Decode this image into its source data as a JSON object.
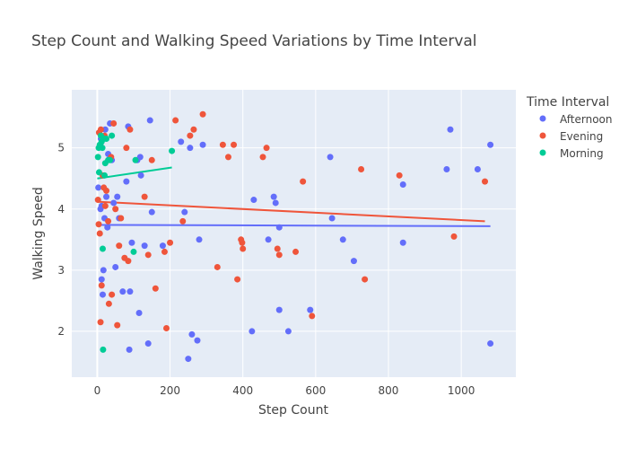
{
  "chart_data": {
    "type": "scatter",
    "title": "Step Count and Walking Speed Variations by Time Interval",
    "xlabel": "Step Count",
    "ylabel": "Walking Speed",
    "xlim": [
      -70,
      1150
    ],
    "ylim": [
      1.25,
      5.95
    ],
    "xticks": [
      0,
      200,
      400,
      600,
      800,
      1000
    ],
    "yticks": [
      2,
      3,
      4,
      5
    ],
    "grid": true,
    "legend": {
      "title": "Time Interval",
      "placement": "top-right"
    },
    "series": [
      {
        "name": "Afternoon",
        "color": "#636efa",
        "points": [
          [
            3,
            4.35
          ],
          [
            8,
            5.05
          ],
          [
            9,
            4.0
          ],
          [
            10,
            5.15
          ],
          [
            12,
            4.05
          ],
          [
            12,
            2.85
          ],
          [
            15,
            2.6
          ],
          [
            17,
            3.0
          ],
          [
            20,
            3.85
          ],
          [
            22,
            5.3
          ],
          [
            25,
            4.2
          ],
          [
            28,
            3.7
          ],
          [
            30,
            4.9
          ],
          [
            35,
            5.4
          ],
          [
            40,
            4.8
          ],
          [
            45,
            4.1
          ],
          [
            50,
            3.05
          ],
          [
            55,
            4.2
          ],
          [
            60,
            3.85
          ],
          [
            70,
            2.65
          ],
          [
            80,
            4.45
          ],
          [
            85,
            5.35
          ],
          [
            88,
            1.7
          ],
          [
            90,
            2.65
          ],
          [
            95,
            3.45
          ],
          [
            110,
            4.8
          ],
          [
            115,
            2.3
          ],
          [
            118,
            4.85
          ],
          [
            120,
            4.55
          ],
          [
            130,
            3.4
          ],
          [
            140,
            1.8
          ],
          [
            145,
            5.45
          ],
          [
            150,
            3.95
          ],
          [
            180,
            3.4
          ],
          [
            230,
            5.1
          ],
          [
            240,
            3.95
          ],
          [
            250,
            1.55
          ],
          [
            255,
            5.0
          ],
          [
            260,
            1.95
          ],
          [
            275,
            1.85
          ],
          [
            280,
            3.5
          ],
          [
            290,
            5.05
          ],
          [
            425,
            2.0
          ],
          [
            430,
            4.15
          ],
          [
            470,
            3.5
          ],
          [
            485,
            4.2
          ],
          [
            490,
            4.1
          ],
          [
            500,
            3.7
          ],
          [
            500,
            2.35
          ],
          [
            525,
            2.0
          ],
          [
            585,
            2.35
          ],
          [
            640,
            4.85
          ],
          [
            645,
            3.85
          ],
          [
            675,
            3.5
          ],
          [
            705,
            3.15
          ],
          [
            840,
            4.4
          ],
          [
            840,
            3.45
          ],
          [
            960,
            4.65
          ],
          [
            970,
            5.3
          ],
          [
            1045,
            4.65
          ],
          [
            1080,
            5.05
          ],
          [
            1080,
            1.8
          ]
        ],
        "trendline": [
          [
            0,
            3.74
          ],
          [
            1080,
            3.72
          ]
        ]
      },
      {
        "name": "Evening",
        "color": "#ef553b",
        "points": [
          [
            2,
            4.15
          ],
          [
            4,
            3.75
          ],
          [
            5,
            5.25
          ],
          [
            7,
            3.6
          ],
          [
            9,
            2.15
          ],
          [
            10,
            5.3
          ],
          [
            12,
            2.75
          ],
          [
            15,
            4.55
          ],
          [
            18,
            4.35
          ],
          [
            20,
            5.2
          ],
          [
            22,
            4.05
          ],
          [
            25,
            4.3
          ],
          [
            30,
            3.8
          ],
          [
            32,
            2.45
          ],
          [
            38,
            4.85
          ],
          [
            40,
            2.6
          ],
          [
            45,
            5.4
          ],
          [
            50,
            4.0
          ],
          [
            55,
            2.1
          ],
          [
            60,
            3.4
          ],
          [
            65,
            3.85
          ],
          [
            75,
            3.2
          ],
          [
            80,
            5.0
          ],
          [
            85,
            3.15
          ],
          [
            90,
            5.3
          ],
          [
            130,
            4.2
          ],
          [
            140,
            3.25
          ],
          [
            150,
            4.8
          ],
          [
            160,
            2.7
          ],
          [
            185,
            3.3
          ],
          [
            190,
            2.05
          ],
          [
            200,
            3.45
          ],
          [
            215,
            5.45
          ],
          [
            235,
            3.8
          ],
          [
            255,
            5.2
          ],
          [
            265,
            5.3
          ],
          [
            290,
            5.55
          ],
          [
            330,
            3.05
          ],
          [
            345,
            5.05
          ],
          [
            360,
            4.85
          ],
          [
            375,
            5.05
          ],
          [
            385,
            2.85
          ],
          [
            395,
            3.5
          ],
          [
            398,
            3.45
          ],
          [
            400,
            3.35
          ],
          [
            455,
            4.85
          ],
          [
            465,
            5.0
          ],
          [
            495,
            3.35
          ],
          [
            500,
            3.25
          ],
          [
            545,
            3.3
          ],
          [
            565,
            4.45
          ],
          [
            590,
            2.25
          ],
          [
            725,
            4.65
          ],
          [
            735,
            2.85
          ],
          [
            830,
            4.55
          ],
          [
            980,
            3.55
          ],
          [
            1065,
            4.45
          ]
        ],
        "trendline": [
          [
            0,
            4.12
          ],
          [
            1065,
            3.8
          ]
        ]
      },
      {
        "name": "Morning",
        "color": "#00cc96",
        "points": [
          [
            2,
            4.85
          ],
          [
            4,
            5.0
          ],
          [
            5,
            4.6
          ],
          [
            7,
            5.05
          ],
          [
            10,
            5.2
          ],
          [
            12,
            5.1
          ],
          [
            14,
            5.0
          ],
          [
            15,
            3.35
          ],
          [
            16,
            1.7
          ],
          [
            18,
            5.15
          ],
          [
            20,
            4.55
          ],
          [
            22,
            4.75
          ],
          [
            25,
            5.15
          ],
          [
            30,
            4.8
          ],
          [
            35,
            4.8
          ],
          [
            40,
            5.2
          ],
          [
            100,
            3.3
          ],
          [
            105,
            4.8
          ],
          [
            205,
            4.95
          ]
        ],
        "trendline": [
          [
            0,
            4.5
          ],
          [
            205,
            4.68
          ]
        ]
      }
    ]
  }
}
